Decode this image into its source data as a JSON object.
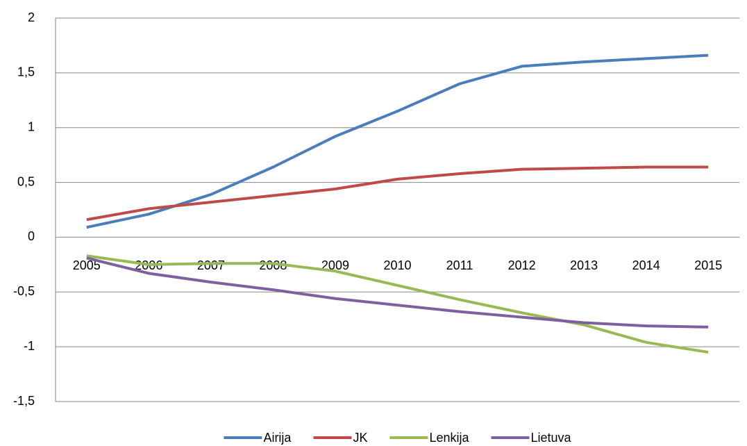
{
  "chart_data": {
    "type": "line",
    "categories": [
      "2005",
      "2006",
      "2007",
      "2008",
      "2009",
      "2010",
      "2011",
      "2012",
      "2013",
      "2014",
      "2015"
    ],
    "series": [
      {
        "name": "Airija",
        "color": "#4a7ebb",
        "values": [
          0.09,
          0.21,
          0.39,
          0.64,
          0.92,
          1.15,
          1.4,
          1.56,
          1.6,
          1.63,
          1.66
        ]
      },
      {
        "name": "JK",
        "color": "#be4b48",
        "values": [
          0.16,
          0.26,
          0.32,
          0.38,
          0.44,
          0.53,
          0.58,
          0.62,
          0.63,
          0.64,
          0.64
        ]
      },
      {
        "name": "Lenkija",
        "color": "#98b954",
        "values": [
          -0.17,
          -0.25,
          -0.24,
          -0.24,
          -0.31,
          -0.44,
          -0.57,
          -0.69,
          -0.8,
          -0.96,
          -1.05
        ]
      },
      {
        "name": "Lietuva",
        "color": "#7d60a0",
        "values": [
          -0.19,
          -0.33,
          -0.41,
          -0.48,
          -0.56,
          -0.62,
          -0.68,
          -0.73,
          -0.78,
          -0.81,
          -0.82
        ]
      }
    ],
    "ylim": [
      -1.5,
      2
    ],
    "yticks": [
      {
        "value": -1.5,
        "label": "-1,5"
      },
      -1,
      {
        "value": -0.5,
        "label": "-0,5"
      },
      0,
      {
        "value": 0.5,
        "label": "0,5"
      },
      1,
      {
        "value": 1.5,
        "label": "1,5"
      },
      2
    ],
    "grid": true,
    "legend": "bottom"
  }
}
